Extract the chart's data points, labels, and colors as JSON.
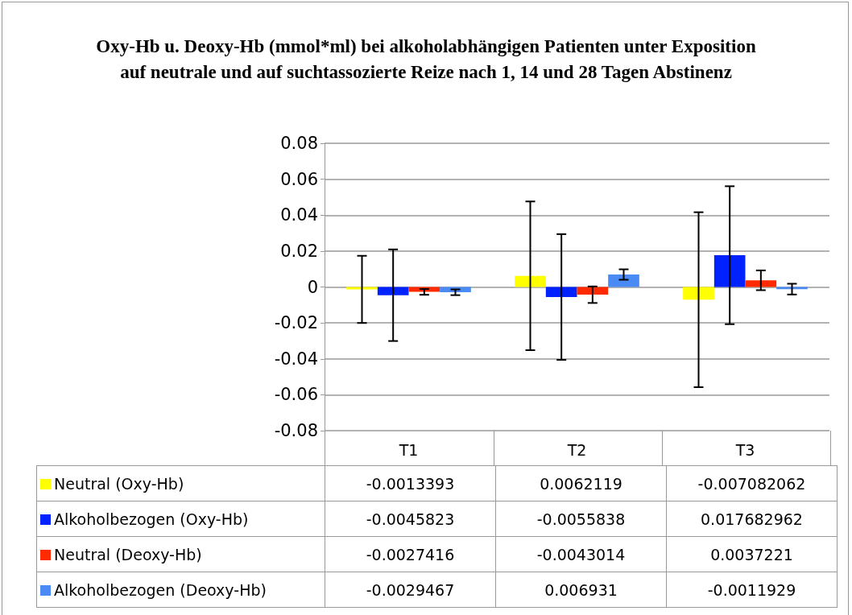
{
  "chart_data": {
    "type": "bar",
    "title": "Oxy-Hb u. Deoxy-Hb (mmol*ml) bei alkoholabhängigen Patienten unter Exposition auf neutrale und auf suchtassozierte Reize nach 1, 14 und 28 Tagen Abstinenz",
    "categories": [
      "T1",
      "T2",
      "T3"
    ],
    "series": [
      {
        "name": "Neutral (Oxy-Hb)",
        "color": "#ffff00",
        "values": [
          -0.0013393,
          0.0062119,
          -0.007082062
        ],
        "errors": [
          0.0187,
          0.0414,
          0.0487
        ]
      },
      {
        "name": "Alkoholbezogen (Oxy-Hb)",
        "color": "#0022ff",
        "values": [
          -0.0045823,
          -0.0055838,
          0.017682962
        ],
        "errors": [
          0.0255,
          0.035,
          0.0384
        ]
      },
      {
        "name": "Neutral (Deoxy-Hb)",
        "color": "#ff2a00",
        "values": [
          -0.0027416,
          -0.0043014,
          0.0037221
        ],
        "errors": [
          0.0016,
          0.0046,
          0.0055
        ]
      },
      {
        "name": "Alkoholbezogen (Deoxy-Hb)",
        "color": "#4a8af4",
        "values": [
          -0.0029467,
          0.006931,
          -0.0011929
        ],
        "errors": [
          0.0016,
          0.0029,
          0.003
        ]
      }
    ],
    "ylim": [
      -0.08,
      0.08
    ],
    "yticks": [
      -0.08,
      -0.06,
      -0.04,
      -0.02,
      0,
      0.02,
      0.04,
      0.06,
      0.08
    ],
    "grid": "y",
    "legend": "bottom",
    "data_labels": true
  }
}
